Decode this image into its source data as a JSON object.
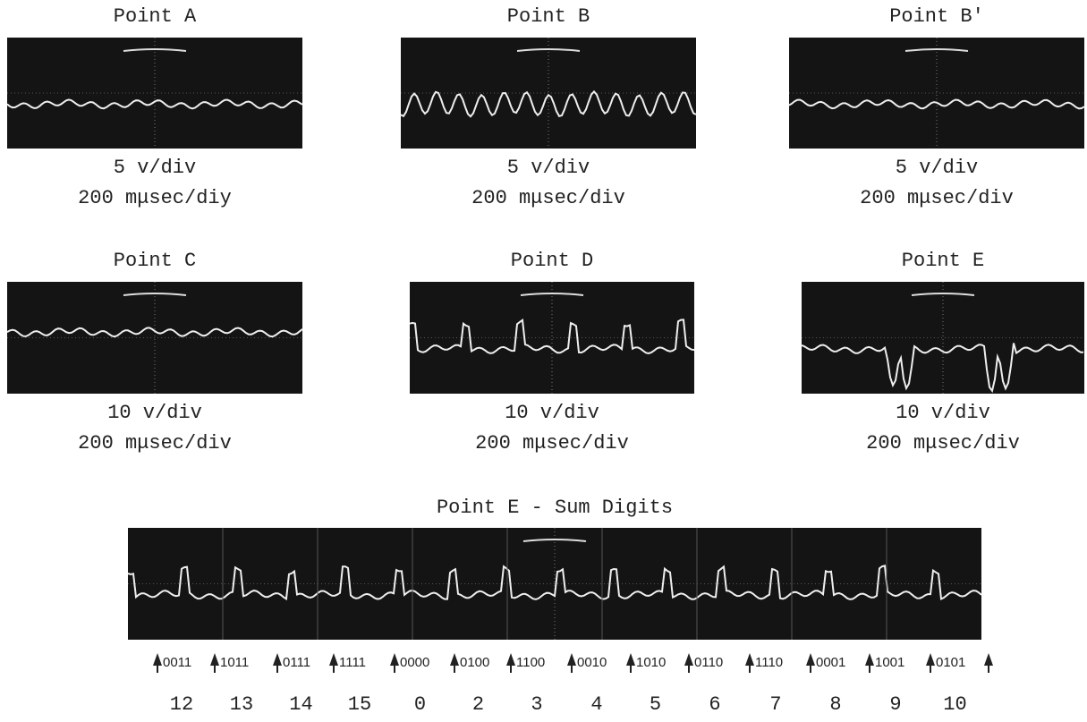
{
  "panels": [
    {
      "title": "Point A",
      "scale": "5 v/div",
      "time": "200 mμsec/diy"
    },
    {
      "title": "Point B",
      "scale": "5 v/div",
      "time": "200 mμsec/div"
    },
    {
      "title": "Point B'",
      "scale": "5 v/div",
      "time": "200 mμsec/div"
    },
    {
      "title": "Point C",
      "scale": "10 v/div",
      "time": "200 mμsec/div"
    },
    {
      "title": "Point D",
      "scale": "10 v/div",
      "time": "200 mμsec/div"
    },
    {
      "title": "Point E",
      "scale": "10 v/div",
      "time": "200 mμsec/div"
    }
  ],
  "sum": {
    "title": "Point E - Sum Digits",
    "codes": [
      "0011",
      "1011",
      "0111",
      "1111",
      "0000",
      "0100",
      "1100",
      "0010",
      "1010",
      "0110",
      "1110",
      "0001",
      "1001",
      "0101"
    ],
    "digits": [
      "12",
      "13",
      "14",
      "15",
      "0",
      "2",
      "3",
      "4",
      "5",
      "6",
      "7",
      "8",
      "9",
      "10"
    ]
  }
}
